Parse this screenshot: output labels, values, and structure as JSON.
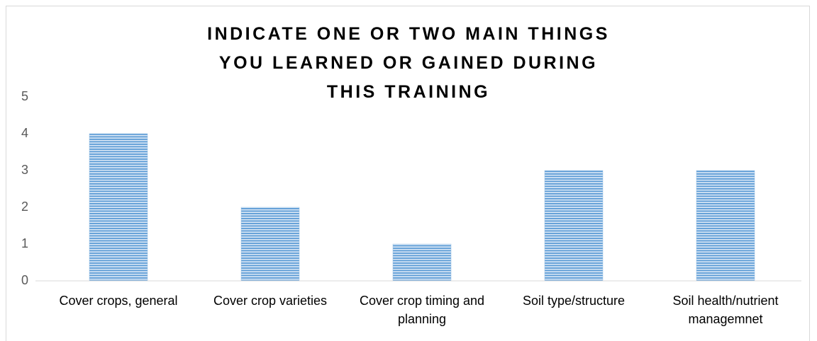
{
  "chart_data": {
    "type": "bar",
    "title": "INDICATE ONE OR TWO MAIN THINGS YOU LEARNED OR GAINED DURING THIS TRAINING",
    "categories": [
      "Cover crops, general",
      "Cover crop varieties",
      "Cover crop timing and planning",
      "Soil type/structure",
      "Soil health/nutrient managemnet"
    ],
    "values": [
      4,
      2,
      1,
      3,
      3
    ],
    "color": "#5b9bd5",
    "ylim": [
      0,
      5
    ],
    "yticks": [
      0,
      1,
      2,
      3,
      4,
      5
    ],
    "grid": false
  }
}
